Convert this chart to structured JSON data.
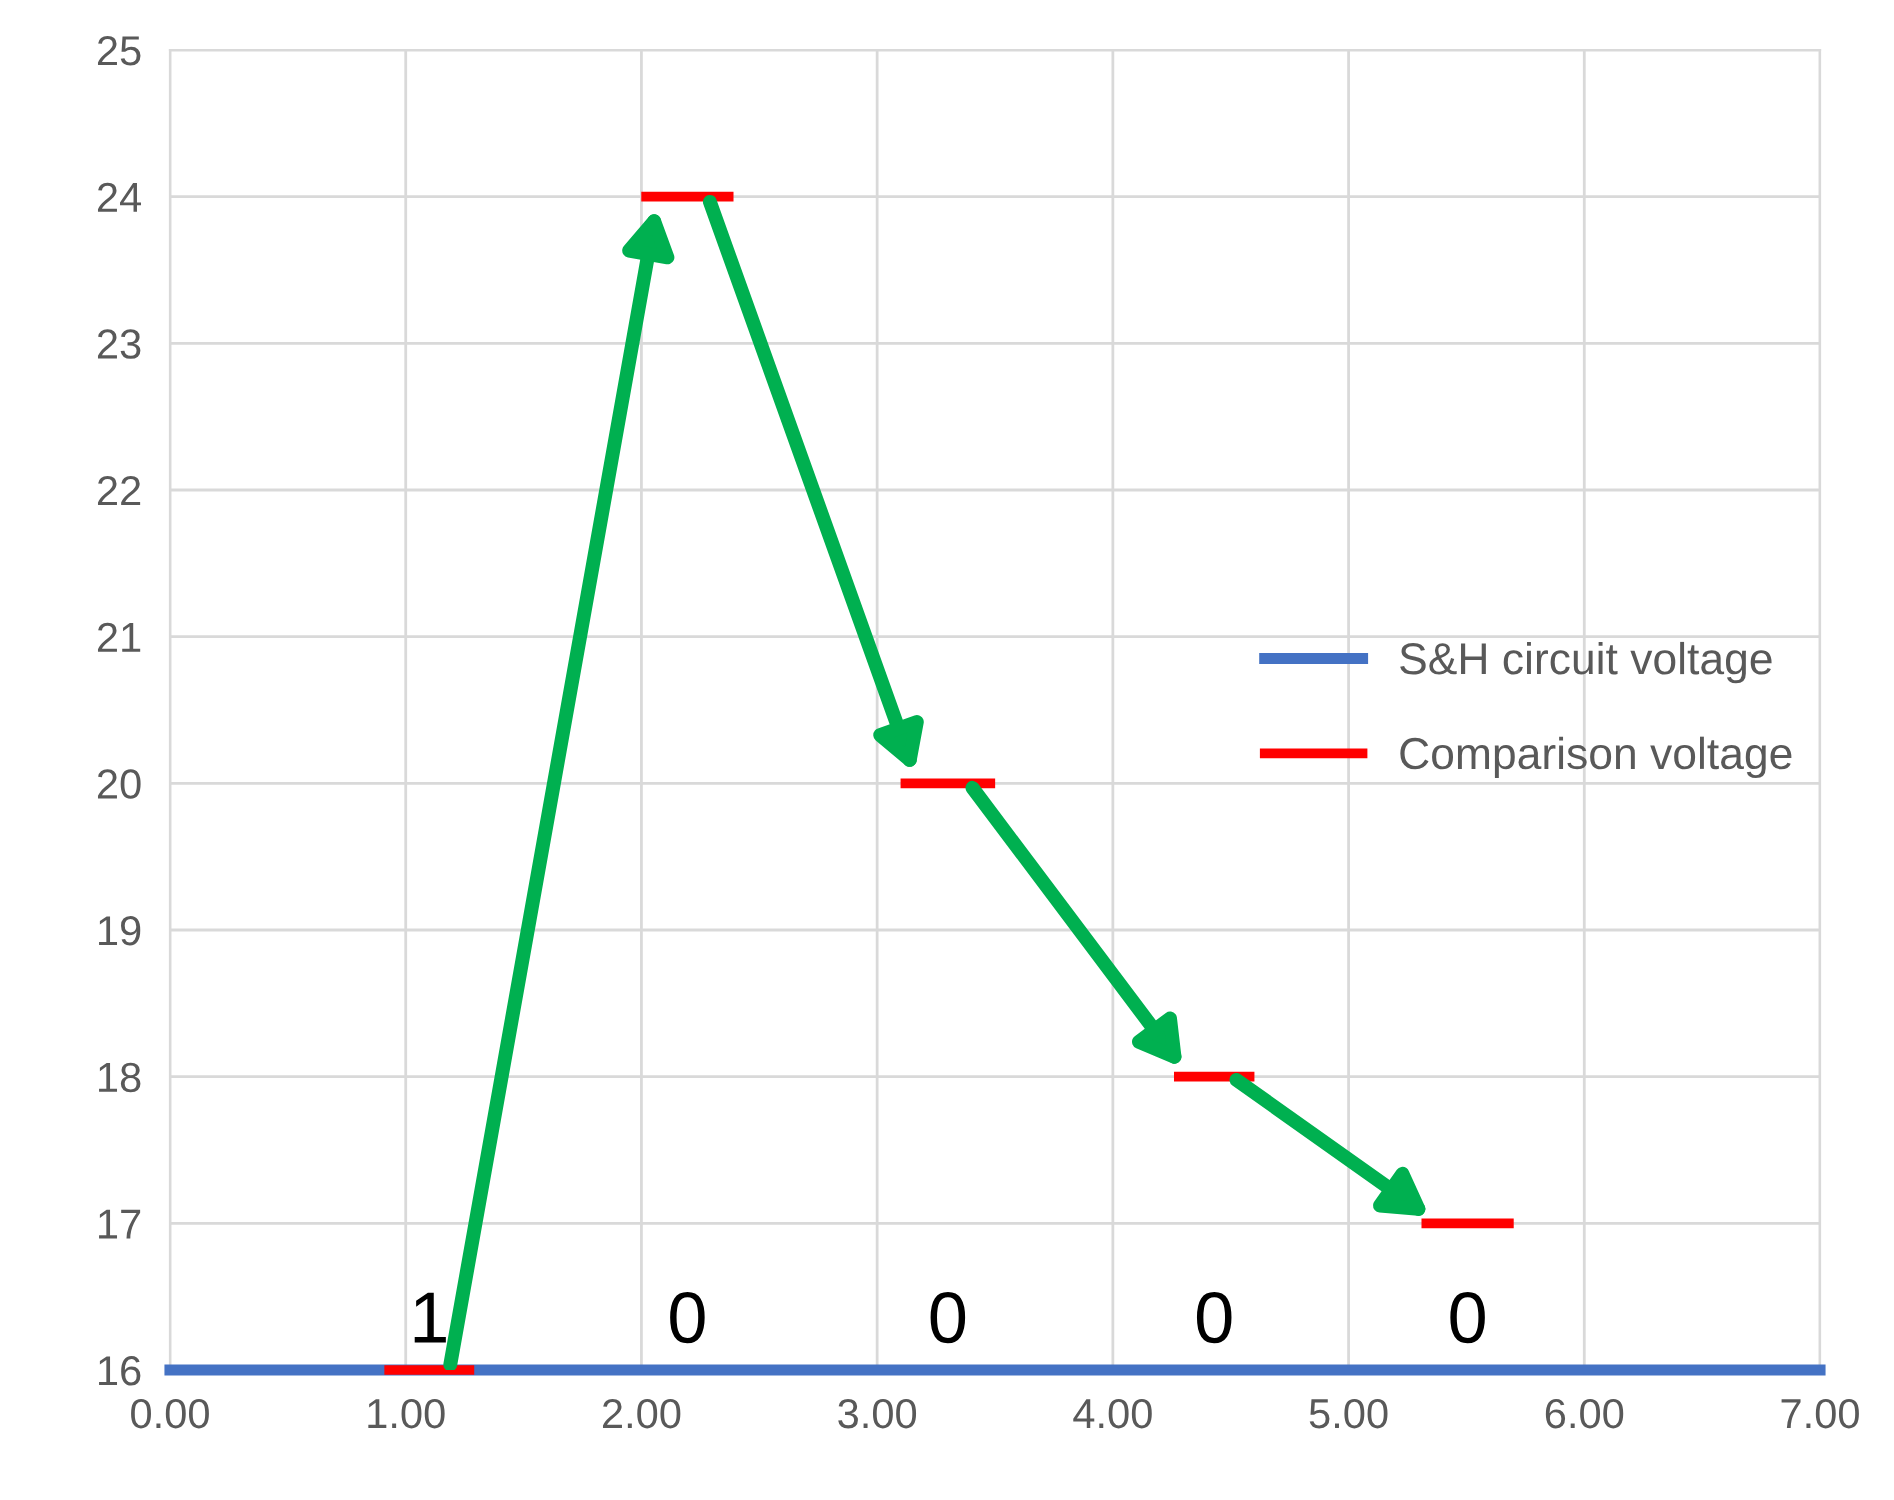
{
  "chart_data": {
    "type": "line",
    "xlim": [
      0,
      7
    ],
    "xticks": [
      {
        "value": 0,
        "label": "0.00"
      },
      {
        "value": 1,
        "label": "1.00"
      },
      {
        "value": 2,
        "label": "2.00"
      },
      {
        "value": 3,
        "label": "3.00"
      },
      {
        "value": 4,
        "label": "4.00"
      },
      {
        "value": 5,
        "label": "5.00"
      },
      {
        "value": 6,
        "label": "6.00"
      },
      {
        "value": 7,
        "label": "7.00"
      }
    ],
    "ylim": [
      16,
      25
    ],
    "yticks": [
      16,
      17,
      18,
      19,
      20,
      21,
      22,
      23,
      24,
      25
    ],
    "series": [
      {
        "name": "S&H circuit voltage",
        "color": "#4472c4",
        "x": [
          0,
          7
        ],
        "values": [
          16,
          16
        ]
      },
      {
        "name": "Comparison voltage",
        "color": "#ff0000",
        "x": [
          0.93,
          1.27,
          1.6,
          2.02,
          2.37,
          2.7,
          3.12,
          3.48,
          3.8,
          4.28,
          4.58,
          4.9,
          5.33,
          5.68
        ],
        "values": [
          16,
          16,
          null,
          24,
          24,
          null,
          20,
          20,
          null,
          18,
          18,
          null,
          17,
          17
        ]
      }
    ],
    "annotations": [
      "1",
      "0",
      "0",
      "0",
      "0"
    ],
    "grid": true,
    "legend": "center right"
  }
}
